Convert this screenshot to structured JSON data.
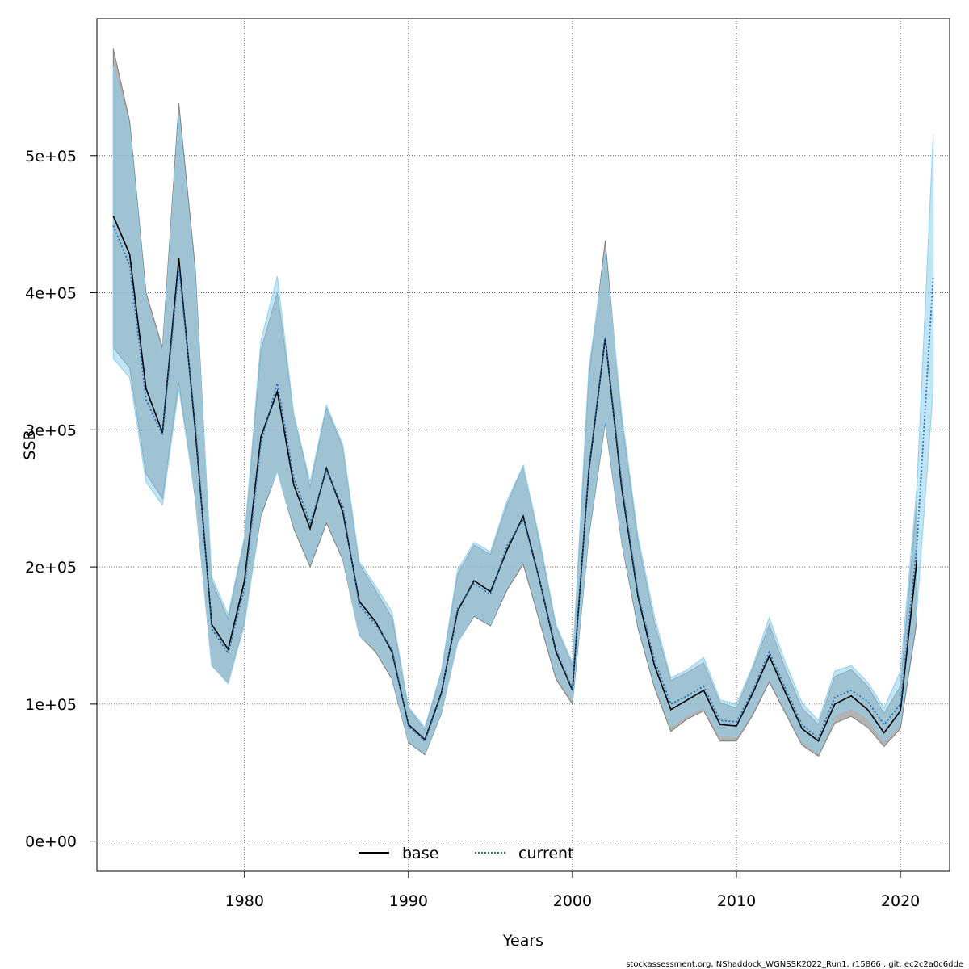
{
  "chart_data": {
    "type": "line",
    "xlabel": "Years",
    "ylabel": "SSB",
    "xlim": [
      1971.0,
      2023.0
    ],
    "ylim": [
      -22000,
      600000
    ],
    "x_ticks": [
      {
        "value": 1980,
        "label": "1980"
      },
      {
        "value": 1990,
        "label": "1990"
      },
      {
        "value": 2000,
        "label": "2000"
      },
      {
        "value": 2010,
        "label": "2010"
      },
      {
        "value": 2020,
        "label": "2020"
      }
    ],
    "y_ticks": [
      {
        "value": 0,
        "label": "0e+00"
      },
      {
        "value": 100000,
        "label": "1e+05"
      },
      {
        "value": 200000,
        "label": "2e+05"
      },
      {
        "value": 300000,
        "label": "3e+05"
      },
      {
        "value": 400000,
        "label": "4e+05"
      },
      {
        "value": 500000,
        "label": "5e+05"
      }
    ],
    "grid": true,
    "legend_position": "bottom",
    "x": [
      1972,
      1973,
      1974,
      1975,
      1976,
      1977,
      1978,
      1979,
      1980,
      1981,
      1982,
      1983,
      1984,
      1985,
      1986,
      1987,
      1988,
      1989,
      1990,
      1991,
      1992,
      1993,
      1994,
      1995,
      1996,
      1997,
      1998,
      1999,
      2000,
      2001,
      2002,
      2003,
      2004,
      2005,
      2006,
      2007,
      2008,
      2009,
      2010,
      2011,
      2012,
      2013,
      2014,
      2015,
      2016,
      2017,
      2018,
      2019,
      2020,
      2021,
      2022
    ],
    "series": [
      {
        "name": "base",
        "line_color": "#000000",
        "line_style": "solid",
        "band_color": "#999999",
        "values": [
          456000,
          428000,
          330000,
          298000,
          425000,
          300000,
          158000,
          140000,
          190000,
          295000,
          328000,
          260000,
          228000,
          272000,
          240000,
          175000,
          160000,
          138000,
          85000,
          74000,
          108000,
          168000,
          190000,
          182000,
          212000,
          237000,
          190000,
          138000,
          110000,
          270000,
          367000,
          258000,
          178000,
          128000,
          96000,
          103000,
          110000,
          85000,
          84000,
          108000,
          135000,
          108000,
          82000,
          73000,
          100000,
          106000,
          96000,
          79000,
          95000,
          205000,
          null
        ],
        "lower": [
          360000,
          345000,
          268000,
          250000,
          335000,
          250000,
          128000,
          115000,
          160000,
          237000,
          270000,
          228000,
          200000,
          232000,
          205000,
          150000,
          138000,
          118000,
          72000,
          63000,
          93000,
          145000,
          164000,
          157000,
          183000,
          202000,
          160000,
          118000,
          100000,
          222000,
          305000,
          218000,
          155000,
          112000,
          80000,
          89000,
          95000,
          73000,
          73000,
          92000,
          116000,
          93000,
          70000,
          62000,
          86000,
          91000,
          83000,
          69000,
          82000,
          160000,
          null
        ],
        "upper": [
          578000,
          525000,
          400000,
          360000,
          538000,
          418000,
          190000,
          162000,
          220000,
          358000,
          400000,
          312000,
          258000,
          316000,
          287000,
          202000,
          183000,
          163000,
          97000,
          81000,
          123000,
          195000,
          216000,
          209000,
          245000,
          274000,
          218000,
          156000,
          128000,
          338000,
          438000,
          307000,
          218000,
          159000,
          117000,
          123000,
          130000,
          101000,
          97000,
          126000,
          158000,
          125000,
          97000,
          85000,
          120000,
          125000,
          113000,
          93000,
          113000,
          248000,
          null
        ]
      },
      {
        "name": "current",
        "line_color": "#1f6fb2",
        "line_style": "dotted",
        "band_color": "#8fcfee",
        "values": [
          449000,
          420000,
          322000,
          296000,
          418000,
          305000,
          155000,
          137000,
          185000,
          290000,
          334000,
          265000,
          232000,
          270000,
          244000,
          172000,
          158000,
          140000,
          84000,
          73000,
          107000,
          170000,
          188000,
          180000,
          215000,
          235000,
          190000,
          140000,
          111000,
          272000,
          368000,
          262000,
          180000,
          132000,
          100000,
          106000,
          113000,
          88000,
          87000,
          110000,
          138000,
          111000,
          85000,
          75000,
          105000,
          110000,
          102000,
          85000,
          100000,
          215000,
          412000
        ],
        "lower": [
          352000,
          338000,
          262000,
          245000,
          330000,
          252000,
          128000,
          115000,
          158000,
          240000,
          270000,
          230000,
          202000,
          235000,
          207000,
          150000,
          140000,
          120000,
          73000,
          64000,
          94000,
          145000,
          165000,
          158000,
          185000,
          205000,
          164000,
          121000,
          103000,
          225000,
          308000,
          220000,
          158000,
          115000,
          84000,
          92000,
          98000,
          77000,
          76000,
          95000,
          119000,
          96000,
          73000,
          64000,
          92000,
          97000,
          90000,
          73000,
          86000,
          168000,
          330000
        ],
        "upper": [
          565000,
          520000,
          395000,
          355000,
          530000,
          410000,
          193000,
          165000,
          222000,
          365000,
          412000,
          312000,
          262000,
          318000,
          289000,
          204000,
          186000,
          167000,
          98000,
          83000,
          124000,
          198000,
          218000,
          211000,
          248000,
          274000,
          220000,
          158000,
          130000,
          345000,
          430000,
          312000,
          222000,
          164000,
          119000,
          125000,
          134000,
          103000,
          100000,
          128000,
          163000,
          130000,
          101000,
          88000,
          124000,
          128000,
          116000,
          97000,
          124000,
          258000,
          515000
        ]
      }
    ],
    "footnote": "stockassessment.org, NShaddock_WGNSSK2022_Run1, r15866 , git: ec2c2a0c6dde"
  }
}
